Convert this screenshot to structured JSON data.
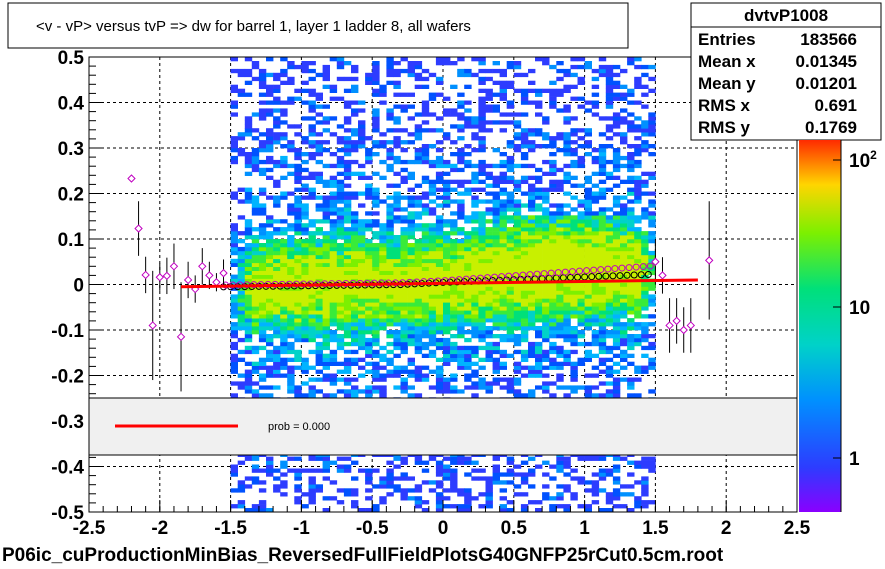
{
  "title": "<v - vP>       versus  tvP =>  dw for barrel 1, layer 1 ladder 8, all wafers",
  "footer": "P06ic_cuProductionMinBias_ReversedFullFieldPlotsG40GNFP25rCut0.5cm.root",
  "stats": {
    "name": "dvtvP1008",
    "rows": [
      {
        "label": "Entries",
        "value": "183566"
      },
      {
        "label": "Mean x",
        "value": "0.01345"
      },
      {
        "label": "Mean y",
        "value": "0.01201"
      },
      {
        "label": "RMS x",
        "value": "0.691"
      },
      {
        "label": "RMS y",
        "value": "0.1769"
      }
    ]
  },
  "legend": {
    "text": "prob = 0.000",
    "line_color": "#ff0000"
  },
  "palette": {
    "labels": [
      {
        "base": "10",
        "exp": "2"
      },
      {
        "base": "10",
        "exp": ""
      },
      {
        "base": "1",
        "exp": ""
      }
    ]
  },
  "chart_data": {
    "type": "heatmap",
    "title": "<v - vP>       versus  tvP =>  dw for barrel 1, layer 1 ladder 8, all wafers",
    "xlabel": "",
    "ylabel": "",
    "xlim": [
      -2.5,
      2.5
    ],
    "ylim": [
      -0.5,
      0.5
    ],
    "xticks": [
      "-2.5",
      "-2",
      "-1.5",
      "-1",
      "-0.5",
      "0",
      "0.5",
      "1",
      "1.5",
      "2",
      "2.5"
    ],
    "xtick_values": [
      -2.5,
      -2,
      -1.5,
      -1,
      -0.5,
      0,
      0.5,
      1,
      1.5,
      2,
      2.5
    ],
    "yticks": [
      "-0.5",
      "-0.4",
      "-0.3",
      "-0.2",
      "-0.1",
      "0",
      "0.1",
      "0.2",
      "0.3",
      "0.4",
      "0.5"
    ],
    "ytick_values": [
      -0.5,
      -0.4,
      -0.3,
      -0.2,
      -0.1,
      0,
      0.1,
      0.2,
      0.3,
      0.4,
      0.5
    ],
    "grid": true,
    "heatmap_x_range": [
      -1.5,
      1.5
    ],
    "color_scale": "log",
    "fit_line": {
      "x": [
        -1.85,
        1.8
      ],
      "y": [
        -0.005,
        0.01
      ],
      "color": "#ff0000"
    },
    "mean_points": [
      {
        "x": -2.2,
        "y": 0.233,
        "err": 0.0
      },
      {
        "x": -2.15,
        "y": 0.123,
        "err": 0.06
      },
      {
        "x": -2.1,
        "y": 0.021,
        "err": 0.04
      },
      {
        "x": -2.05,
        "y": -0.09,
        "err": 0.12
      },
      {
        "x": -2.0,
        "y": 0.016,
        "err": 0.03
      },
      {
        "x": -1.95,
        "y": 0.019,
        "err": 0.04
      },
      {
        "x": -1.9,
        "y": 0.04,
        "err": 0.05
      },
      {
        "x": -1.85,
        "y": -0.115,
        "err": 0.12
      },
      {
        "x": -1.8,
        "y": 0.01,
        "err": 0.04
      },
      {
        "x": -1.75,
        "y": -0.01,
        "err": 0.03
      },
      {
        "x": -1.7,
        "y": 0.04,
        "err": 0.04
      },
      {
        "x": -1.65,
        "y": 0.02,
        "err": 0.03
      },
      {
        "x": -1.6,
        "y": 0.005,
        "err": 0.02
      },
      {
        "x": -1.55,
        "y": 0.025,
        "err": 0.03
      },
      {
        "x": 1.5,
        "y": 0.05,
        "err": 0.05
      },
      {
        "x": 1.55,
        "y": 0.02,
        "err": 0.04
      },
      {
        "x": 1.6,
        "y": -0.09,
        "err": 0.06
      },
      {
        "x": 1.65,
        "y": -0.08,
        "err": 0.05
      },
      {
        "x": 1.7,
        "y": -0.1,
        "err": 0.05
      },
      {
        "x": 1.75,
        "y": -0.09,
        "err": 0.06
      },
      {
        "x": 1.88,
        "y": 0.053,
        "err": 0.13
      }
    ]
  }
}
